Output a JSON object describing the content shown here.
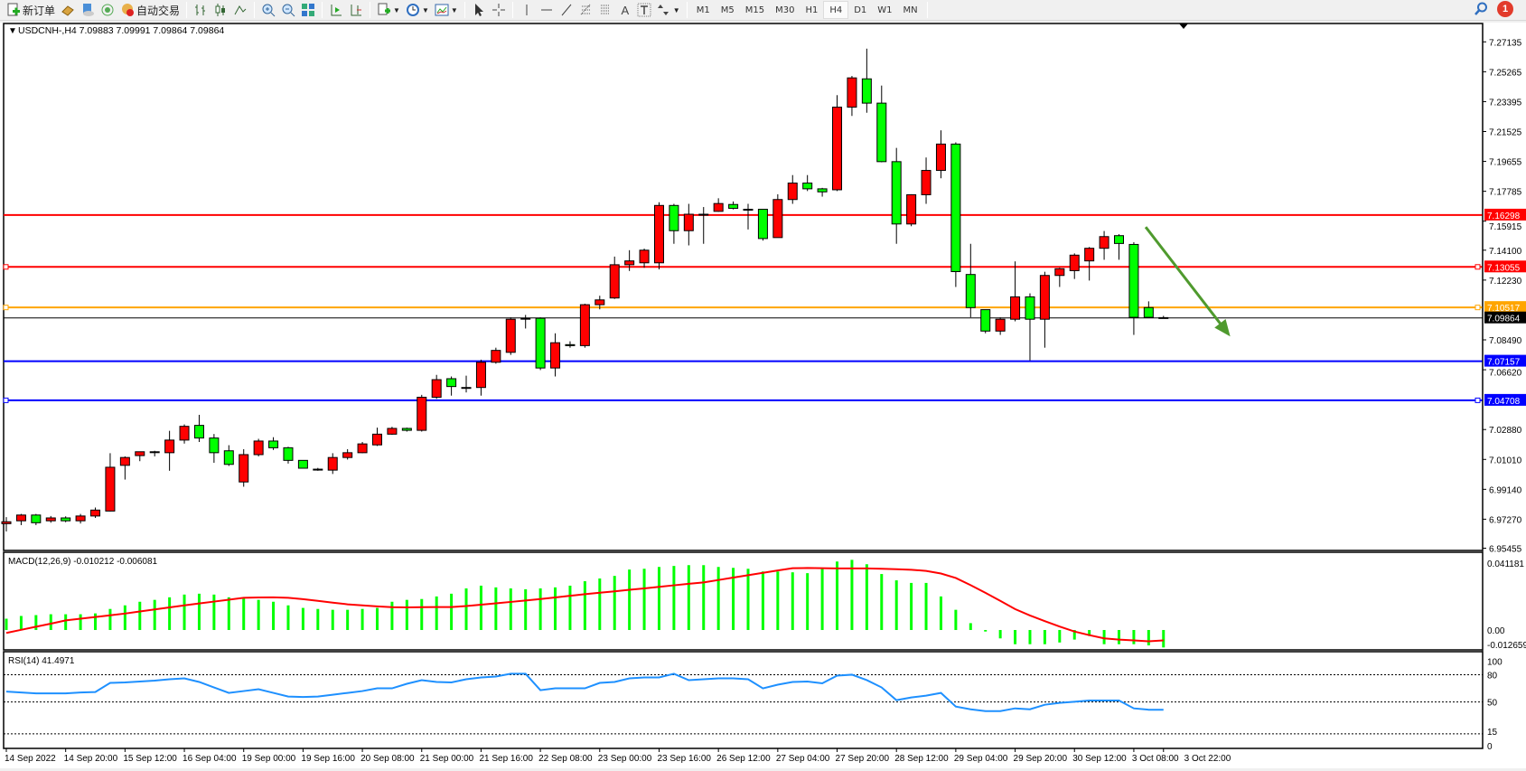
{
  "toolbar": {
    "new_order_label": "新订单",
    "auto_trading_label": "自动交易",
    "icons": [
      "new-order-icon",
      "gold-icon",
      "market-watch-icon",
      "signals-icon",
      "auto-trading-icon",
      "bar-chart-icon",
      "candlestick-icon",
      "line-chart-icon",
      "zoom-in-icon",
      "zoom-out-icon",
      "tile-windows-icon",
      "auto-scroll-icon",
      "chart-shift-icon",
      "indicators-icon",
      "periods-icon",
      "templates-icon",
      "cursor-icon",
      "crosshair-icon",
      "vertical-line-icon",
      "horizontal-line-icon",
      "trendline-icon",
      "fibonacci-icon",
      "fibo-fan-icon",
      "text-icon",
      "text-label-icon",
      "arrows-icon"
    ],
    "text_tool": "A",
    "timeframes": [
      "M1",
      "M5",
      "M15",
      "M30",
      "H1",
      "H4",
      "D1",
      "W1",
      "MN"
    ],
    "active_timeframe": "H4",
    "notification_count": "1"
  },
  "chart_header": {
    "symbol": "USDCNH-,H4",
    "ohlc": "7.09883 7.09991 7.09864 7.09864"
  },
  "colors": {
    "up": "#ff0000",
    "down": "#00ff00",
    "grid": "#000000",
    "macd_hist": "#00ff00",
    "macd_signal": "#ff0000",
    "rsi": "#1e90ff",
    "arrow": "#4f9a2e"
  },
  "chart_data": {
    "type": "candlestick",
    "candles": [
      [
        6.9699,
        6.974,
        6.965,
        6.9711
      ],
      [
        6.9717,
        6.976,
        6.969,
        6.9753
      ],
      [
        6.9753,
        6.976,
        6.969,
        6.9705
      ],
      [
        6.9717,
        6.9747,
        6.9705,
        6.9735
      ],
      [
        6.9735,
        6.9745,
        6.9708,
        6.9717
      ],
      [
        6.9717,
        6.976,
        6.97,
        6.9747
      ],
      [
        6.9747,
        6.98,
        6.9735,
        6.9784
      ],
      [
        6.9778,
        7.014,
        6.9775,
        7.0052
      ],
      [
        7.0064,
        7.012,
        6.9975,
        7.0113
      ],
      [
        7.0125,
        7.015,
        7.009,
        7.0149
      ],
      [
        7.0149,
        7.0155,
        7.012,
        7.0149
      ],
      [
        7.0143,
        7.028,
        7.003,
        7.0222
      ],
      [
        7.0222,
        7.032,
        7.02,
        7.0308
      ],
      [
        7.0314,
        7.038,
        7.021,
        7.0235
      ],
      [
        7.0235,
        7.026,
        7.008,
        7.0143
      ],
      [
        7.0155,
        7.019,
        7.006,
        7.007
      ],
      [
        6.996,
        7.0165,
        6.993,
        7.0131
      ],
      [
        7.0131,
        7.023,
        7.012,
        7.0216
      ],
      [
        7.0216,
        7.024,
        7.016,
        7.0174
      ],
      [
        7.0174,
        7.018,
        7.0075,
        7.0095
      ],
      [
        7.0095,
        7.0095,
        7.0045,
        7.0046
      ],
      [
        7.004,
        7.0048,
        7.003,
        7.004
      ],
      [
        7.0034,
        7.014,
        7.001,
        7.0113
      ],
      [
        7.0113,
        7.0165,
        7.01,
        7.0143
      ],
      [
        7.0143,
        7.021,
        7.014,
        7.0198
      ],
      [
        7.0192,
        7.03,
        7.0185,
        7.0259
      ],
      [
        7.0259,
        7.0305,
        7.0255,
        7.0295
      ],
      [
        7.0295,
        7.03,
        7.0275,
        7.0283
      ],
      [
        7.0283,
        7.0505,
        7.0275,
        7.049
      ],
      [
        7.049,
        7.063,
        7.048,
        7.06
      ],
      [
        7.0606,
        7.062,
        7.05,
        7.0557
      ],
      [
        7.0551,
        7.0625,
        7.052,
        7.0551
      ],
      [
        7.0551,
        7.0725,
        7.05,
        7.0709
      ],
      [
        7.0709,
        7.08,
        7.07,
        7.0783
      ],
      [
        7.0771,
        7.099,
        7.0755,
        7.0978
      ],
      [
        7.0984,
        7.1005,
        7.092,
        7.0984
      ],
      [
        7.0984,
        7.099,
        7.066,
        7.0673
      ],
      [
        7.0673,
        7.089,
        7.062,
        7.0831
      ],
      [
        7.0819,
        7.084,
        7.08,
        7.0813
      ],
      [
        7.0813,
        7.1075,
        7.08,
        7.1069
      ],
      [
        7.1069,
        7.1125,
        7.104,
        7.1099
      ],
      [
        7.1111,
        7.137,
        7.1105,
        7.1319
      ],
      [
        7.1319,
        7.141,
        7.128,
        7.1343
      ],
      [
        7.1331,
        7.142,
        7.13,
        7.141
      ],
      [
        7.1331,
        7.171,
        7.129,
        7.169
      ],
      [
        7.169,
        7.17,
        7.145,
        7.1532
      ],
      [
        7.1532,
        7.17,
        7.144,
        7.1635
      ],
      [
        7.1635,
        7.168,
        7.145,
        7.1635
      ],
      [
        7.1653,
        7.1735,
        7.165,
        7.1702
      ],
      [
        7.1696,
        7.1715,
        7.1665,
        7.1672
      ],
      [
        7.1666,
        7.17,
        7.154,
        7.1666
      ],
      [
        7.1666,
        7.1666,
        7.147,
        7.1483
      ],
      [
        7.1489,
        7.176,
        7.1489,
        7.1727
      ],
      [
        7.1727,
        7.188,
        7.17,
        7.183
      ],
      [
        7.183,
        7.188,
        7.178,
        7.1794
      ],
      [
        7.1794,
        7.18,
        7.1745,
        7.1775
      ],
      [
        7.1788,
        7.238,
        7.178,
        7.2305
      ],
      [
        7.2305,
        7.25,
        7.225,
        7.2488
      ],
      [
        7.2482,
        7.2671,
        7.227,
        7.233
      ],
      [
        7.233,
        7.244,
        7.196,
        7.1964
      ],
      [
        7.1964,
        7.205,
        7.145,
        7.1574
      ],
      [
        7.1574,
        7.176,
        7.156,
        7.1757
      ],
      [
        7.1757,
        7.199,
        7.17,
        7.1909
      ],
      [
        7.1909,
        7.216,
        7.186,
        7.2074
      ],
      [
        7.2074,
        7.2085,
        7.118,
        7.1276
      ],
      [
        7.1258,
        7.145,
        7.099,
        7.1051
      ],
      [
        7.1038,
        7.1038,
        7.089,
        7.0904
      ],
      [
        7.0904,
        7.099,
        7.088,
        7.0978
      ],
      [
        7.0978,
        7.134,
        7.0965,
        7.1118
      ],
      [
        7.1118,
        7.114,
        7.072,
        7.0978
      ],
      [
        7.0978,
        7.1275,
        7.08,
        7.1252
      ],
      [
        7.1252,
        7.13,
        7.118,
        7.1294
      ],
      [
        7.1282,
        7.139,
        7.123,
        7.1379
      ],
      [
        7.1343,
        7.143,
        7.122,
        7.1422
      ],
      [
        7.1422,
        7.153,
        7.135,
        7.1495
      ],
      [
        7.1501,
        7.151,
        7.135,
        7.1452
      ],
      [
        7.1446,
        7.146,
        7.088,
        7.099
      ],
      [
        7.1051,
        7.109,
        7.099,
        7.099
      ],
      [
        7.09883,
        7.09991,
        7.09864,
        7.09864
      ]
    ],
    "price_axis_labels": [
      "7.27135",
      "7.25265",
      "7.23395",
      "7.21525",
      "7.19655",
      "7.17785",
      "7.15915",
      "7.14100",
      "7.12230",
      "7.08490",
      "7.06620",
      "7.02880",
      "7.01010",
      "6.99140",
      "6.97270",
      "6.95455"
    ],
    "ylim": [
      6.95455,
      7.27135
    ],
    "horizontal_lines": [
      {
        "price": 7.16298,
        "label": "7.16298",
        "color": "#ff0000"
      },
      {
        "price": 7.13055,
        "label": "7.13055",
        "color": "#ff0000"
      },
      {
        "price": 7.10517,
        "label": "7.10517",
        "color": "#ffa500"
      },
      {
        "price": 7.09864,
        "label": "7.09864",
        "color": "#000000"
      },
      {
        "price": 7.07157,
        "label": "7.07157",
        "color": "#0000ff"
      },
      {
        "price": 7.04708,
        "label": "7.04708",
        "color": "#0000ff"
      }
    ],
    "trend_arrow": {
      "from": {
        "bar": 76.8,
        "price": 7.1555
      },
      "to": {
        "bar": 82.5,
        "price": 7.087
      }
    },
    "time_labels": [
      {
        "bar": 0,
        "label": "14 Sep 2022"
      },
      {
        "bar": 4,
        "label": "14 Sep 20:00"
      },
      {
        "bar": 8,
        "label": "15 Sep 12:00"
      },
      {
        "bar": 12,
        "label": "16 Sep 04:00"
      },
      {
        "bar": 16,
        "label": "19 Sep 00:00"
      },
      {
        "bar": 20,
        "label": "19 Sep 16:00"
      },
      {
        "bar": 24,
        "label": "20 Sep 08:00"
      },
      {
        "bar": 28,
        "label": "21 Sep 00:00"
      },
      {
        "bar": 32,
        "label": "21 Sep 16:00"
      },
      {
        "bar": 36,
        "label": "22 Sep 08:00"
      },
      {
        "bar": 40,
        "label": "23 Sep 00:00"
      },
      {
        "bar": 44,
        "label": "23 Sep 16:00"
      },
      {
        "bar": 48,
        "label": "26 Sep 12:00"
      },
      {
        "bar": 52,
        "label": "27 Sep 04:00"
      },
      {
        "bar": 56,
        "label": "27 Sep 20:00"
      },
      {
        "bar": 60,
        "label": "28 Sep 12:00"
      },
      {
        "bar": 64,
        "label": "29 Sep 04:00"
      },
      {
        "bar": 68,
        "label": "29 Sep 20:00"
      },
      {
        "bar": 72,
        "label": "30 Sep 12:00"
      },
      {
        "bar": 76,
        "label": "3 Oct 08:00"
      },
      {
        "bar": 78,
        "label": "3 Oct 22:00"
      }
    ],
    "macd": {
      "label": "MACD(12,26,9) -0.010212 -0.006081",
      "axis_labels": [
        "0.041181",
        "0.00",
        "-0.012659"
      ],
      "ylim": [
        -0.012659,
        0.041181
      ],
      "histogram": [
        0.0066,
        0.0082,
        0.0087,
        0.0092,
        0.0092,
        0.0092,
        0.0097,
        0.0123,
        0.0144,
        0.0165,
        0.0176,
        0.0191,
        0.0207,
        0.0212,
        0.0207,
        0.0191,
        0.0186,
        0.0176,
        0.0165,
        0.0144,
        0.0129,
        0.0123,
        0.0118,
        0.0118,
        0.0123,
        0.0129,
        0.0165,
        0.0176,
        0.0181,
        0.0196,
        0.0212,
        0.0243,
        0.0259,
        0.0249,
        0.0243,
        0.0238,
        0.0243,
        0.0249,
        0.0259,
        0.0285,
        0.0301,
        0.0316,
        0.0353,
        0.0358,
        0.0368,
        0.0374,
        0.0379,
        0.0379,
        0.0368,
        0.0363,
        0.0358,
        0.0342,
        0.0342,
        0.0337,
        0.0332,
        0.0363,
        0.04,
        0.041,
        0.0384,
        0.0327,
        0.029,
        0.0275,
        0.0275,
        0.0196,
        0.0118,
        0.004,
        -0.0009,
        -0.0049,
        -0.0083,
        -0.0083,
        -0.0083,
        -0.0073,
        -0.0056,
        -0.0035,
        -0.0083,
        -0.0083,
        -0.0083,
        -0.009,
        -0.0102
      ],
      "signal": [
        -0.0017,
        0.0001,
        0.0019,
        0.0037,
        0.0056,
        0.0066,
        0.0076,
        0.0086,
        0.0096,
        0.0108,
        0.012,
        0.0132,
        0.0144,
        0.0155,
        0.0166,
        0.0177,
        0.0188,
        0.019,
        0.0191,
        0.0188,
        0.018,
        0.017,
        0.016,
        0.015,
        0.0144,
        0.0138,
        0.0133,
        0.0132,
        0.0133,
        0.0134,
        0.0134,
        0.014,
        0.0148,
        0.0156,
        0.0164,
        0.0172,
        0.0181,
        0.019,
        0.02,
        0.0209,
        0.0218,
        0.0226,
        0.0235,
        0.0243,
        0.0252,
        0.0261,
        0.027,
        0.0278,
        0.0292,
        0.0306,
        0.032,
        0.0334,
        0.0348,
        0.0361,
        0.0362,
        0.0361,
        0.036,
        0.036,
        0.036,
        0.0358,
        0.0355,
        0.0352,
        0.0345,
        0.033,
        0.0304,
        0.0262,
        0.0217,
        0.017,
        0.0122,
        0.0085,
        0.0052,
        0.002,
        -0.0009,
        -0.003,
        -0.0049,
        -0.0056,
        -0.0061,
        -0.0066,
        -0.0061
      ]
    },
    "rsi": {
      "label": "RSI(14) 41.4971",
      "axis_labels": [
        "100",
        "80",
        "50",
        "15",
        "0"
      ],
      "levels": [
        80,
        50,
        15
      ],
      "ylim": [
        0,
        100
      ],
      "values": [
        61.4,
        60.5,
        59.5,
        59.5,
        59.5,
        60.5,
        61,
        71,
        71.5,
        72.5,
        73.5,
        75,
        76,
        72,
        66,
        60,
        62,
        64,
        60,
        56,
        55.5,
        56,
        58,
        60,
        62,
        65,
        65,
        70,
        74,
        72,
        71.5,
        75,
        77,
        78,
        81,
        81,
        63,
        65,
        65,
        65,
        71,
        72,
        76,
        77,
        77,
        81,
        74,
        75,
        76,
        76,
        75,
        65,
        69,
        72,
        72.5,
        70.5,
        79,
        80,
        74,
        66,
        52,
        55,
        57,
        60,
        45,
        42,
        40,
        40,
        43,
        42,
        47,
        49,
        50.3,
        51.6,
        51.6,
        51.6,
        43,
        41.5,
        41.4971
      ]
    }
  }
}
